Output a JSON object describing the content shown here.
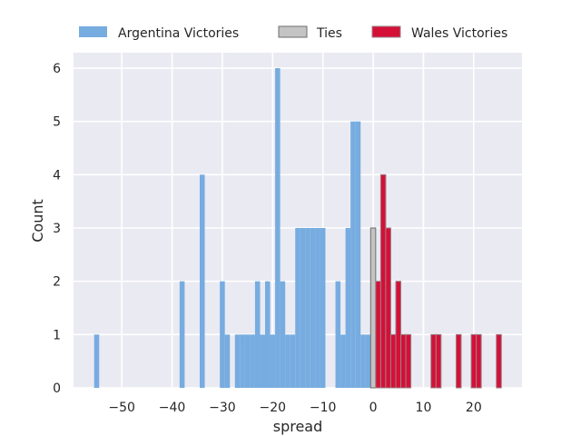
{
  "chart_data": {
    "type": "bar",
    "title": "",
    "xlabel": "spread",
    "ylabel": "Count",
    "xlim": [
      -59.6,
      29.6
    ],
    "ylim": [
      0,
      6.29
    ],
    "xticks": [
      -50,
      -40,
      -30,
      -20,
      -10,
      0,
      10,
      20
    ],
    "xtick_labels": [
      "−50",
      "−40",
      "−30",
      "−20",
      "−10",
      "0",
      "10",
      "20"
    ],
    "yticks": [
      0,
      1,
      2,
      3,
      4,
      5,
      6
    ],
    "ytick_labels": [
      "0",
      "1",
      "2",
      "3",
      "4",
      "5",
      "6"
    ],
    "grid": true,
    "legend_placement": "top-center-outside",
    "bin_width": 1,
    "series": [
      {
        "name": "Argentina Victories",
        "color": "#77ACE0",
        "edge": "none",
        "x": [
          -55,
          -38,
          -34,
          -30,
          -29,
          -27,
          -26,
          -25,
          -24,
          -23,
          -22,
          -21,
          -20,
          -19,
          -18,
          -17,
          -16,
          -15,
          -14,
          -13,
          -12,
          -11,
          -10,
          -7,
          -6,
          -5,
          -4,
          -3,
          -2,
          -1
        ],
        "values": [
          1,
          2,
          4,
          2,
          1,
          1,
          1,
          1,
          1,
          2,
          1,
          2,
          1,
          6,
          2,
          1,
          1,
          3,
          3,
          3,
          3,
          3,
          3,
          2,
          1,
          3,
          5,
          5,
          1,
          1
        ]
      },
      {
        "name": "Ties",
        "color": "#C4C4C4",
        "edge": "#6E6E6E",
        "x": [
          0
        ],
        "values": [
          3
        ]
      },
      {
        "name": "Wales Victories",
        "color": "#D41037",
        "edge": "#9A8088",
        "x": [
          1,
          2,
          3,
          4,
          5,
          6,
          7,
          12,
          13,
          17,
          20,
          21,
          25
        ],
        "values": [
          2,
          4,
          3,
          1,
          2,
          1,
          1,
          1,
          1,
          1,
          1,
          1,
          1
        ]
      }
    ]
  }
}
